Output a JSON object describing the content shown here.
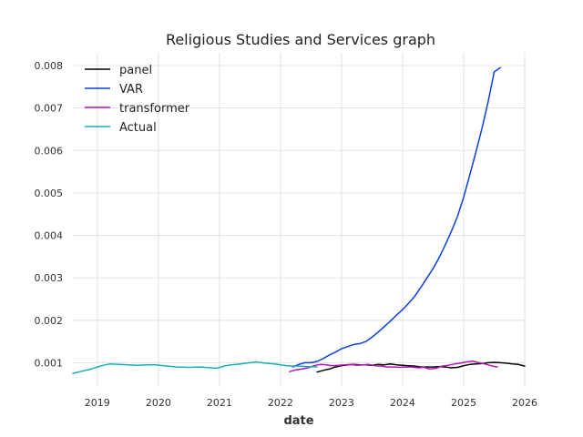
{
  "chart_data": {
    "type": "line",
    "title": "Religious Studies and Services graph",
    "xlabel": "date",
    "ylabel": "",
    "x_ticks": [
      "2019",
      "2020",
      "2021",
      "2022",
      "2023",
      "2024",
      "2025",
      "2026"
    ],
    "y_ticks": [
      "0.001",
      "0.002",
      "0.003",
      "0.004",
      "0.005",
      "0.006",
      "0.007",
      "0.008"
    ],
    "xlim": [
      2018.6,
      2026.0
    ],
    "ylim": [
      0.00043,
      0.0083
    ],
    "grid": true,
    "legend_position": "top-left",
    "series": [
      {
        "name": "panel",
        "color": "#000000",
        "x": [
          2022.6,
          2022.7,
          2022.8,
          2022.9,
          2023.0,
          2023.1,
          2023.2,
          2023.3,
          2023.4,
          2023.5,
          2023.6,
          2023.7,
          2023.8,
          2023.9,
          2024.0,
          2024.1,
          2024.2,
          2024.3,
          2024.4,
          2024.5,
          2024.6,
          2024.7,
          2024.8,
          2024.9,
          2025.0,
          2025.1,
          2025.2,
          2025.3,
          2025.4,
          2025.5,
          2025.6,
          2025.7,
          2025.8,
          2025.9,
          2026.0
        ],
        "y": [
          0.00078,
          0.00082,
          0.00085,
          0.0009,
          0.00093,
          0.00095,
          0.00096,
          0.00095,
          0.00095,
          0.00094,
          0.00096,
          0.00095,
          0.00097,
          0.00095,
          0.00094,
          0.00093,
          0.00092,
          0.0009,
          0.0009,
          0.0009,
          0.00091,
          0.0009,
          0.00088,
          0.00089,
          0.00093,
          0.00096,
          0.00097,
          0.00098,
          0.001,
          0.00101,
          0.001,
          0.00099,
          0.00097,
          0.00096,
          0.00092
        ]
      },
      {
        "name": "VAR",
        "color": "#0b3fe0",
        "x": [
          2022.2,
          2022.3,
          2022.4,
          2022.5,
          2022.6,
          2022.7,
          2022.8,
          2022.9,
          2023.0,
          2023.1,
          2023.2,
          2023.3,
          2023.4,
          2023.5,
          2023.6,
          2023.7,
          2023.8,
          2023.9,
          2024.0,
          2024.1,
          2024.2,
          2024.3,
          2024.4,
          2024.5,
          2024.6,
          2024.7,
          2024.8,
          2024.9,
          2025.0,
          2025.1,
          2025.2,
          2025.3,
          2025.4,
          2025.5,
          2025.6
        ],
        "y": [
          0.0009,
          0.00096,
          0.001,
          0.001,
          0.00103,
          0.0011,
          0.00118,
          0.00125,
          0.00133,
          0.00138,
          0.00143,
          0.00145,
          0.0015,
          0.0016,
          0.00172,
          0.00185,
          0.00198,
          0.00212,
          0.00225,
          0.0024,
          0.00257,
          0.00278,
          0.003,
          0.00322,
          0.00348,
          0.00378,
          0.0041,
          0.00445,
          0.0049,
          0.00542,
          0.00596,
          0.00652,
          0.00714,
          0.00785,
          0.00795
        ]
      },
      {
        "name": "transformer",
        "color": "#b514b8",
        "x": [
          2022.15,
          2022.25,
          2022.35,
          2022.45,
          2022.55,
          2022.65,
          2022.75,
          2022.85,
          2022.95,
          2023.05,
          2023.15,
          2023.25,
          2023.35,
          2023.45,
          2023.55,
          2023.65,
          2023.75,
          2023.85,
          2023.95,
          2024.05,
          2024.15,
          2024.25,
          2024.35,
          2024.45,
          2024.55,
          2024.65,
          2024.75,
          2024.85,
          2024.95,
          2025.05,
          2025.15,
          2025.25,
          2025.35,
          2025.45,
          2025.55
        ],
        "y": [
          0.00079,
          0.00083,
          0.00085,
          0.00088,
          0.00093,
          0.00096,
          0.00095,
          0.00093,
          0.00094,
          0.00095,
          0.00096,
          0.00094,
          0.00095,
          0.00096,
          0.00093,
          0.00092,
          0.0009,
          0.0009,
          0.00089,
          0.0009,
          0.0009,
          0.00088,
          0.00089,
          0.00085,
          0.00087,
          0.00092,
          0.00094,
          0.00097,
          0.00099,
          0.00102,
          0.00104,
          0.001,
          0.00097,
          0.00093,
          0.0009
        ]
      },
      {
        "name": "Actual",
        "color": "#18aeb8",
        "x": [
          2018.6,
          2018.75,
          2018.9,
          2019.0,
          2019.1,
          2019.2,
          2019.35,
          2019.5,
          2019.65,
          2019.8,
          2019.95,
          2020.1,
          2020.3,
          2020.5,
          2020.7,
          2020.85,
          2020.95,
          2021.1,
          2021.2,
          2021.35,
          2021.5,
          2021.6,
          2021.75,
          2021.9,
          2022.0,
          2022.1,
          2022.2,
          2022.3,
          2022.45,
          2022.6
        ],
        "y": [
          0.00075,
          0.0008,
          0.00085,
          0.0009,
          0.00094,
          0.00097,
          0.00096,
          0.00095,
          0.00094,
          0.00095,
          0.00095,
          0.00093,
          0.0009,
          0.00089,
          0.0009,
          0.00088,
          0.00087,
          0.00093,
          0.00095,
          0.00097,
          0.001,
          0.00102,
          0.00099,
          0.00097,
          0.00095,
          0.00093,
          0.00092,
          0.00092,
          0.00091,
          0.0009
        ]
      }
    ]
  }
}
